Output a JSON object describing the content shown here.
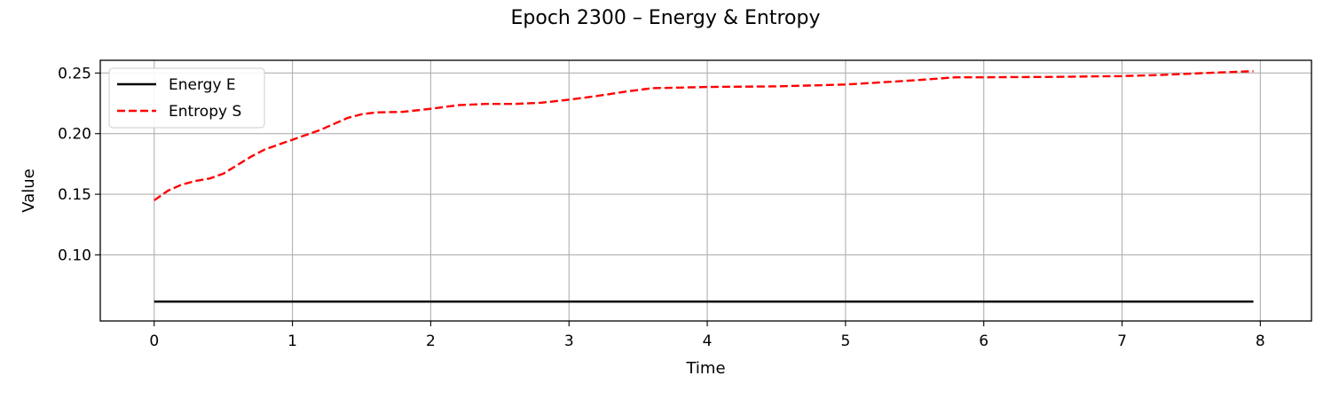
{
  "chart_data": {
    "type": "line",
    "title": "Epoch 2300 – Energy & Entropy",
    "xlabel": "Time",
    "ylabel": "Value",
    "xlim": [
      -0.39,
      8.37
    ],
    "ylim": [
      0.0455,
      0.2605
    ],
    "xticks": [
      0,
      1,
      2,
      3,
      4,
      5,
      6,
      7,
      8
    ],
    "yticks": [
      0.1,
      0.15,
      0.2,
      0.25
    ],
    "xtick_labels": [
      "0",
      "1",
      "2",
      "3",
      "4",
      "5",
      "6",
      "7",
      "8"
    ],
    "ytick_labels": [
      "0.10",
      "0.15",
      "0.20",
      "0.25"
    ],
    "grid": true,
    "legend_position": "top-left",
    "series": [
      {
        "name": "Energy E",
        "color": "#000000",
        "style": "solid",
        "x": [
          0,
          7.95
        ],
        "y": [
          0.0615,
          0.0615
        ]
      },
      {
        "name": "Entropy S",
        "color": "#ff0000",
        "style": "dashed",
        "x": [
          0,
          0.1,
          0.2,
          0.3,
          0.4,
          0.5,
          0.6,
          0.7,
          0.8,
          0.9,
          1.0,
          1.1,
          1.2,
          1.3,
          1.4,
          1.5,
          1.6,
          1.8,
          2.0,
          2.2,
          2.4,
          2.6,
          2.8,
          3.0,
          3.2,
          3.4,
          3.6,
          3.8,
          4.0,
          4.5,
          5.0,
          5.5,
          5.8,
          6.0,
          6.5,
          7.0,
          7.3,
          7.6,
          7.95
        ],
        "y": [
          0.145,
          0.153,
          0.158,
          0.161,
          0.163,
          0.167,
          0.174,
          0.181,
          0.187,
          0.191,
          0.195,
          0.199,
          0.203,
          0.208,
          0.213,
          0.216,
          0.2175,
          0.218,
          0.2205,
          0.2235,
          0.2245,
          0.2245,
          0.2255,
          0.228,
          0.231,
          0.2345,
          0.2375,
          0.238,
          0.2385,
          0.239,
          0.2405,
          0.244,
          0.2465,
          0.2465,
          0.2468,
          0.2475,
          0.2485,
          0.25,
          0.2515
        ]
      }
    ]
  }
}
